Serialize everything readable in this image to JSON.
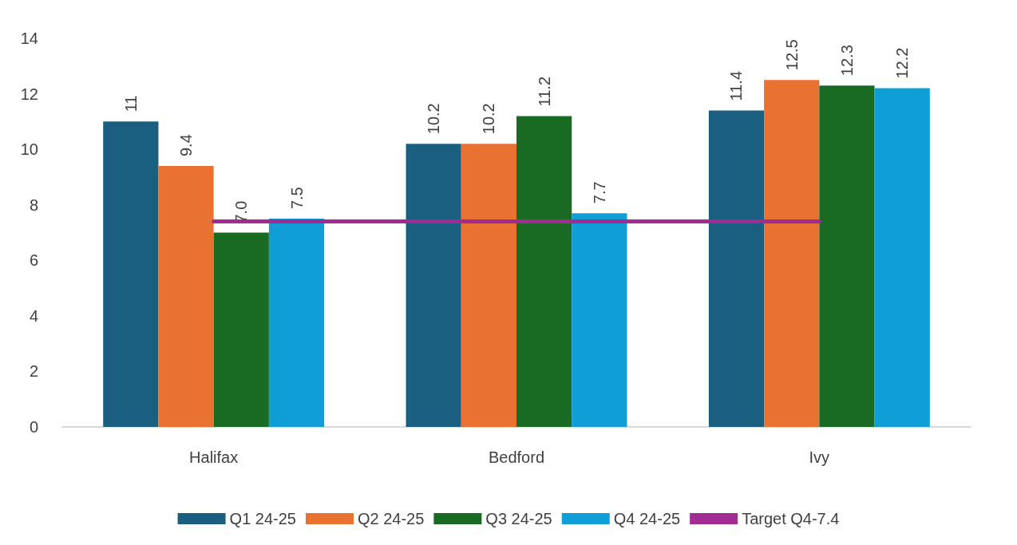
{
  "chart_data": {
    "type": "bar",
    "categories": [
      "Halifax",
      "Bedford",
      "Ivy"
    ],
    "series": [
      {
        "name": "Q1 24-25",
        "color": "#1a5e80",
        "values": [
          11,
          10.2,
          11.4
        ],
        "value_labels": [
          "11",
          "10.2",
          "11.4"
        ]
      },
      {
        "name": "Q2 24-25",
        "color": "#e97132",
        "values": [
          9.4,
          10.2,
          12.5
        ],
        "value_labels": [
          "9.4",
          "10.2",
          "12.5"
        ]
      },
      {
        "name": "Q3 24-25",
        "color": "#196b24",
        "values": [
          7.0,
          11.2,
          12.3
        ],
        "value_labels": [
          "7.0",
          "11.2",
          "12.3"
        ]
      },
      {
        "name": "Q4 24-25",
        "color": "#0f9ed5",
        "values": [
          7.5,
          7.7,
          12.2
        ],
        "value_labels": [
          "7.5",
          "7.7",
          "12.2"
        ]
      },
      {
        "name": "Target Q4-7.4",
        "type": "line",
        "color": "#a02b93",
        "values": [
          7.4,
          7.4,
          7.4
        ]
      }
    ],
    "ylim": [
      0,
      14
    ],
    "yticks": [
      0,
      2,
      4,
      6,
      8,
      10,
      12,
      14
    ],
    "grid": false,
    "legend": "bottom",
    "marker": "none",
    "line_style": "solid"
  }
}
